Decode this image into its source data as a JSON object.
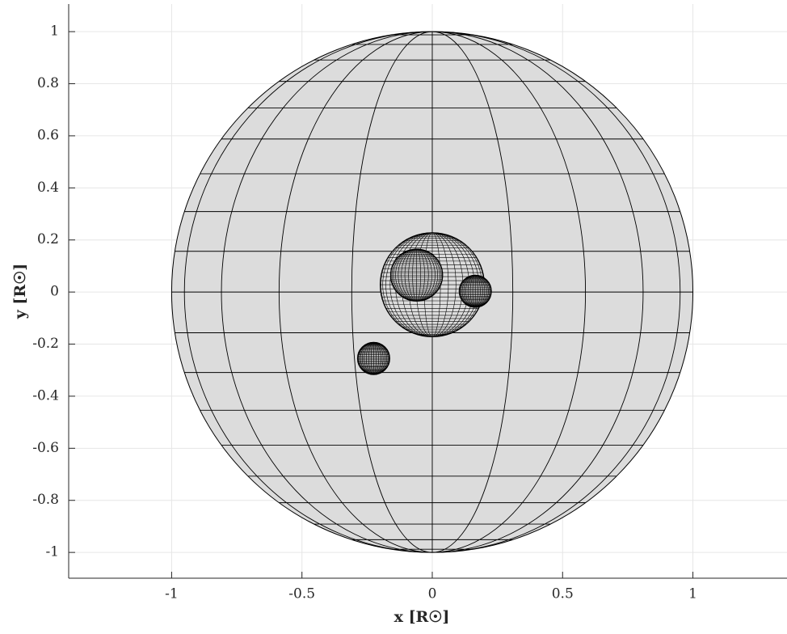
{
  "chart_data": {
    "type": "spheres",
    "xlabel": "x [R☉]",
    "ylabel": "y [R☉]",
    "x": [
      0,
      0,
      -0.06,
      0.165,
      -0.225
    ],
    "y": [
      0,
      0.028,
      0.065,
      0.003,
      -0.255
    ],
    "radius": [
      1,
      0.2,
      0.1,
      0.062,
      0.062
    ],
    "color": "#dcdcdc",
    "xlim": [
      -1.395,
      1.361
    ],
    "ylim": [
      -1.099,
      1.106
    ],
    "xticks": [
      -1,
      -0.5,
      0,
      0.5,
      1
    ],
    "yticks": [
      -1,
      -0.8,
      -0.6,
      -0.4,
      -0.2,
      0,
      0.2,
      0.4,
      0.6,
      0.8,
      1
    ],
    "grid": true
  }
}
